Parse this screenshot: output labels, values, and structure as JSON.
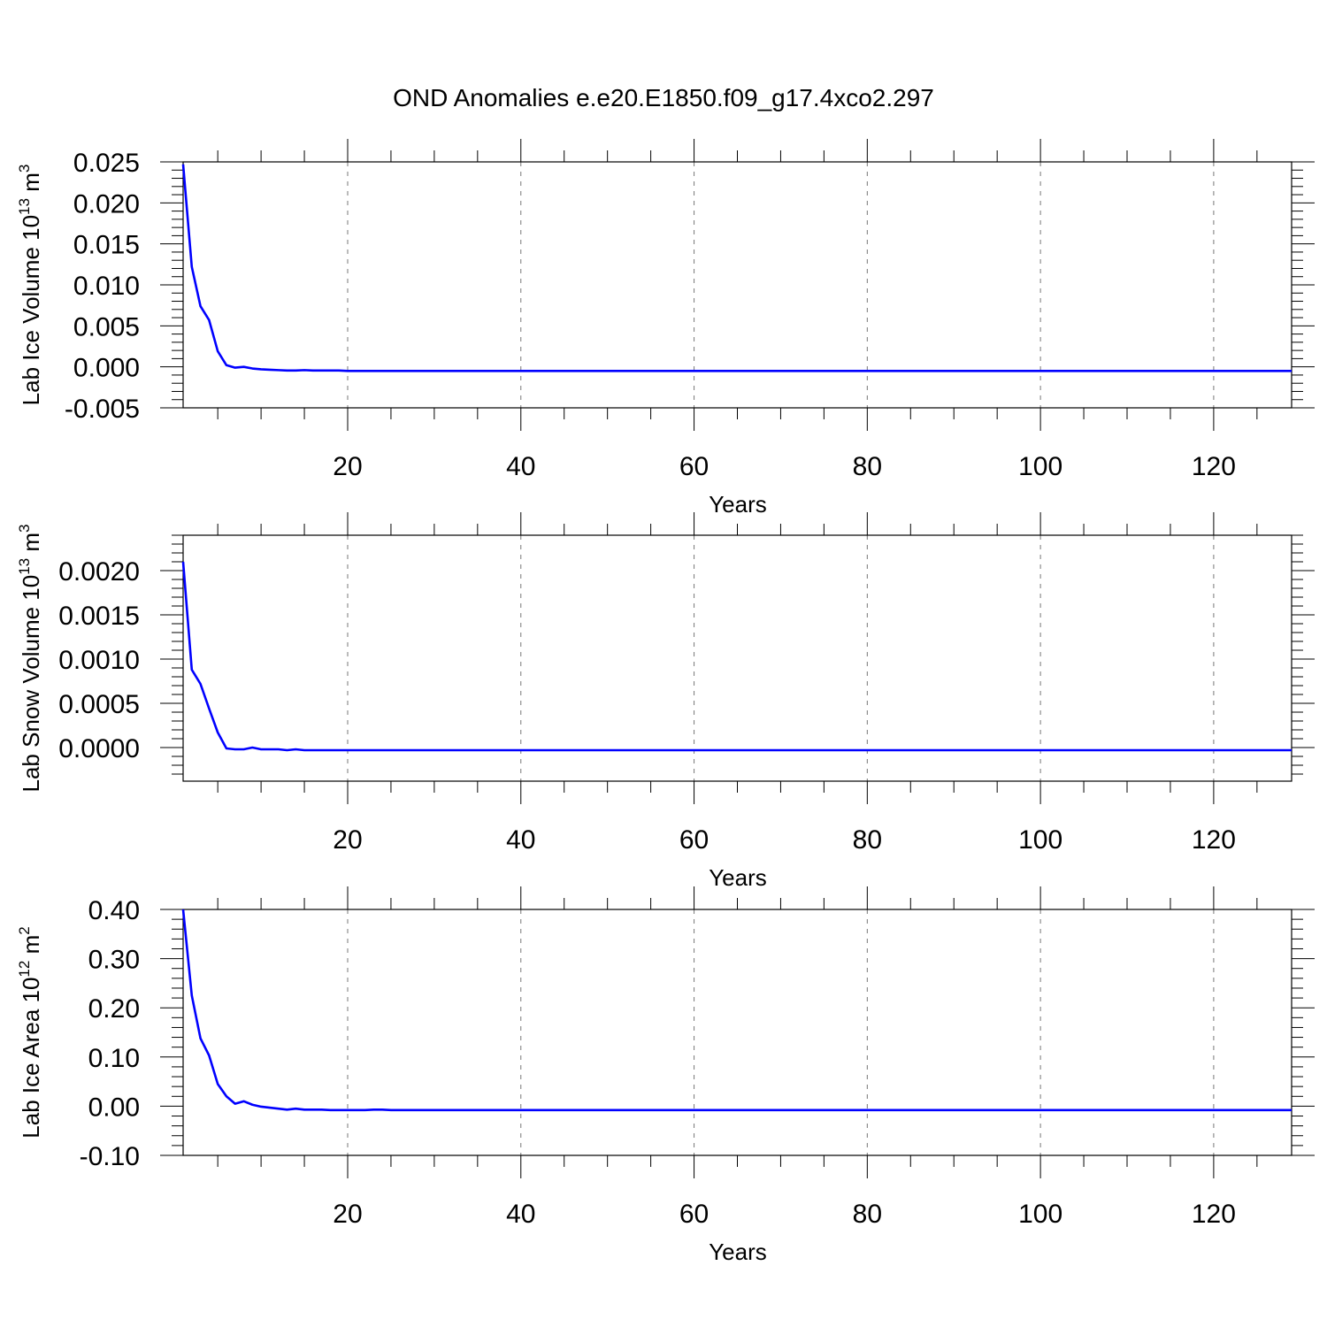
{
  "title": "OND Anomalies e.e20.E1850.f09_g17.4xco2.297",
  "chart_data": [
    {
      "type": "line",
      "ylabel": {
        "text": "Lab Ice Volume 10",
        "exp": "13",
        "unit": " m",
        "unit_exp": "3"
      },
      "xlabel": "Years",
      "xlim": [
        1,
        129
      ],
      "ylim": [
        -0.005,
        0.025
      ],
      "xticks": [
        20,
        40,
        60,
        80,
        100,
        120
      ],
      "xtick_labels": [
        "20",
        "40",
        "60",
        "80",
        "100",
        "120"
      ],
      "yticks": [
        -0.005,
        0.0,
        0.005,
        0.01,
        0.015,
        0.02,
        0.025
      ],
      "ytick_labels": [
        "-0.005",
        "0.000",
        "0.005",
        "0.010",
        "0.015",
        "0.020",
        "0.025"
      ],
      "grid": "vertical dashed",
      "series": [
        {
          "color": "#0000ff",
          "x_start": 1,
          "values": [
            0.0247,
            0.0122,
            0.0074,
            0.0057,
            0.0019,
            0.0002,
            -0.0001,
            0.0,
            -0.0002,
            -0.0003,
            -0.00035,
            -0.0004,
            -0.00045,
            -0.00045,
            -0.0004,
            -0.00045,
            -0.00045,
            -0.00045,
            -0.00045,
            -0.0005,
            -0.0005,
            -0.0005,
            -0.0005,
            -0.0005,
            -0.0005
          ]
        }
      ],
      "tail_value": -0.0005
    },
    {
      "type": "line",
      "ylabel": {
        "text": "Lab Snow Volume 10",
        "exp": "13",
        "unit": " m",
        "unit_exp": "3"
      },
      "xlabel": "Years",
      "xlim": [
        1,
        129
      ],
      "ylim": [
        -0.00038,
        0.0024
      ],
      "xticks": [
        20,
        40,
        60,
        80,
        100,
        120
      ],
      "xtick_labels": [
        "20",
        "40",
        "60",
        "80",
        "100",
        "120"
      ],
      "yticks": [
        0.0,
        0.0005,
        0.001,
        0.0015,
        0.002
      ],
      "ytick_labels": [
        "0.0000",
        "0.0005",
        "0.0010",
        "0.0015",
        "0.0020"
      ],
      "grid": "vertical dashed",
      "series": [
        {
          "color": "#0000ff",
          "x_start": 1,
          "values": [
            0.0021,
            0.00088,
            0.00072,
            0.00044,
            0.00017,
            -1e-05,
            -2e-05,
            -2e-05,
            0.0,
            -2e-05,
            -2e-05,
            -2e-05,
            -3e-05,
            -2e-05,
            -3e-05,
            -3e-05,
            -3e-05,
            -3e-05,
            -3e-05,
            -3e-05,
            -3e-05,
            -3e-05,
            -3e-05,
            -3e-05,
            -3e-05
          ]
        }
      ],
      "tail_value": -3e-05
    },
    {
      "type": "line",
      "ylabel": {
        "text": "Lab Ice Area 10",
        "exp": "12",
        "unit": " m",
        "unit_exp": "2"
      },
      "xlabel": "Years",
      "xlim": [
        1,
        129
      ],
      "ylim": [
        -0.1,
        0.4
      ],
      "xticks": [
        20,
        40,
        60,
        80,
        100,
        120
      ],
      "xtick_labels": [
        "20",
        "40",
        "60",
        "80",
        "100",
        "120"
      ],
      "yticks": [
        -0.1,
        0.0,
        0.1,
        0.2,
        0.3,
        0.4
      ],
      "ytick_labels": [
        "-0.10",
        "0.00",
        "0.10",
        "0.20",
        "0.30",
        "0.40"
      ],
      "grid": "vertical dashed",
      "series": [
        {
          "color": "#0000ff",
          "x_start": 1,
          "values": [
            0.4,
            0.225,
            0.138,
            0.103,
            0.045,
            0.02,
            0.005,
            0.01,
            0.003,
            -0.001,
            -0.003,
            -0.005,
            -0.007,
            -0.005,
            -0.007,
            -0.007,
            -0.007,
            -0.008,
            -0.008,
            -0.008,
            -0.008,
            -0.008,
            -0.007,
            -0.007,
            -0.008
          ]
        }
      ],
      "tail_value": -0.008
    }
  ]
}
